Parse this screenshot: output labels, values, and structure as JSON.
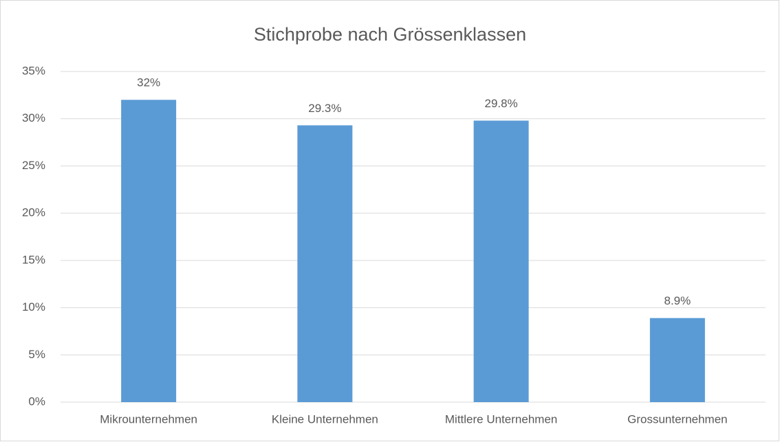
{
  "chart_data": {
    "type": "bar",
    "title": "Stichprobe nach Grössenklassen",
    "categories": [
      "Mikrounternehmen",
      "Kleine Unternehmen",
      "Mittlere Unternehmen",
      "Grossunternehmen"
    ],
    "values": [
      32,
      29.3,
      29.8,
      8.9
    ],
    "value_labels": [
      "32%",
      "29.3%",
      "29.8%",
      "8.9%"
    ],
    "color": "#5b9bd5",
    "ylim": [
      0,
      35
    ],
    "yticks": [
      {
        "value": 0,
        "label": "0%"
      },
      {
        "value": 5,
        "label": "5%"
      },
      {
        "value": 10,
        "label": "10%"
      },
      {
        "value": 15,
        "label": "15%"
      },
      {
        "value": 20,
        "label": "20%"
      },
      {
        "value": 25,
        "label": "25%"
      },
      {
        "value": 30,
        "label": "30%"
      },
      {
        "value": 35,
        "label": "35%"
      }
    ],
    "grid": true
  }
}
